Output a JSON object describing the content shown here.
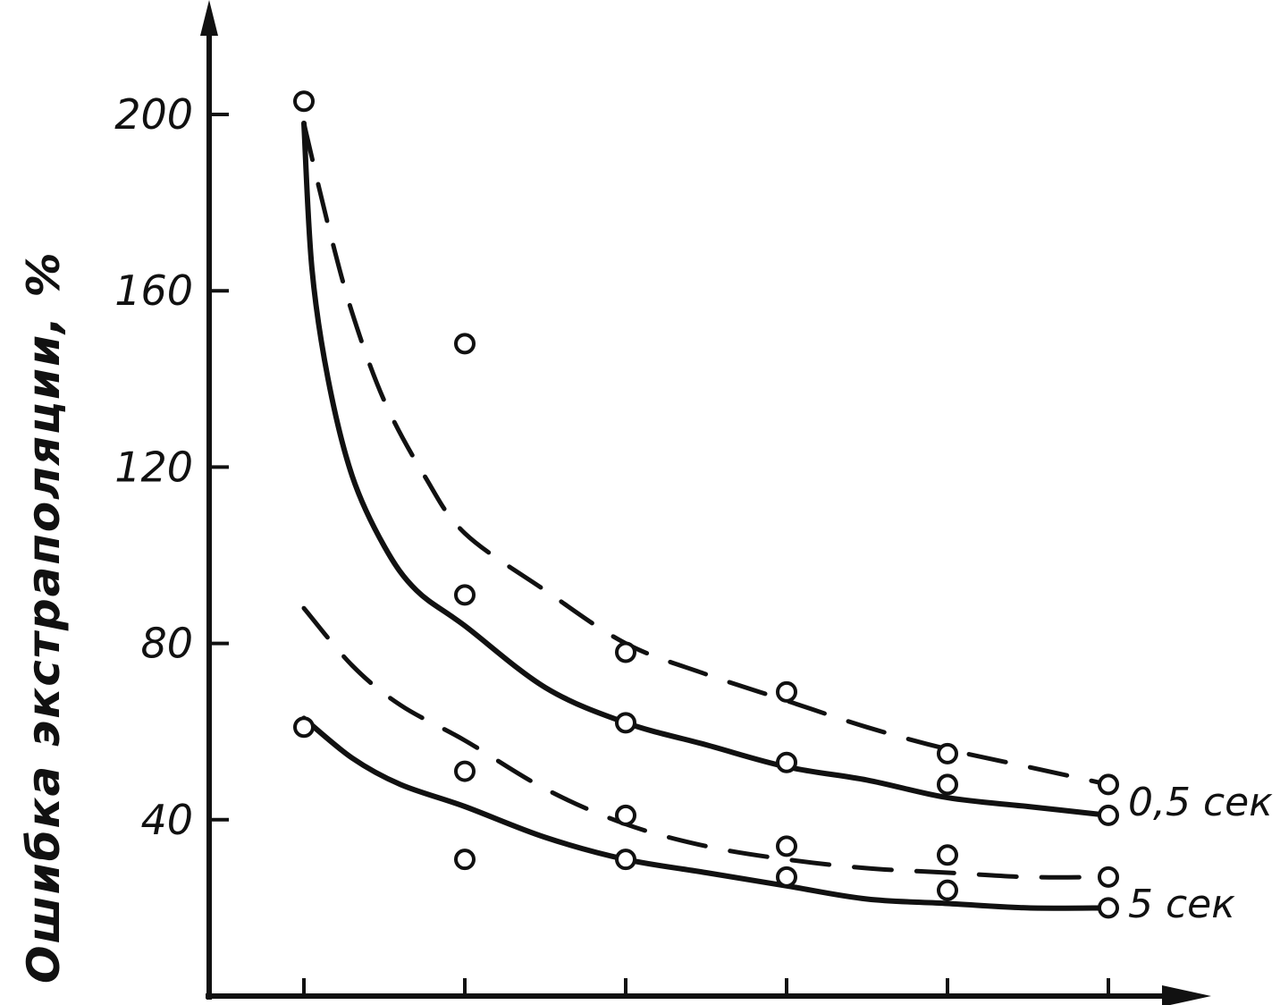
{
  "chart_data": {
    "type": "line",
    "title": "",
    "xlabel": "",
    "ylabel": "Ошибка экстраполяции, %",
    "x_ticks": [
      "",
      "",
      "",
      "",
      "",
      ""
    ],
    "x": [
      1,
      2,
      3,
      4,
      5,
      6
    ],
    "y_ticks": [
      40,
      80,
      120,
      160,
      200
    ],
    "ylim": [
      0,
      220
    ],
    "grid": false,
    "legend": "right (labels at curve ends)",
    "series_labels": [
      "0,5 сек",
      "5 сек"
    ],
    "series": [
      {
        "group": "0,5 сек",
        "style": "solid",
        "curve": [
          [
            1,
            198
          ],
          [
            1.05,
            165
          ],
          [
            1.15,
            140
          ],
          [
            1.3,
            118
          ],
          [
            1.5,
            102
          ],
          [
            1.7,
            92
          ],
          [
            2,
            84
          ],
          [
            2.5,
            70
          ],
          [
            3,
            62
          ],
          [
            3.5,
            57
          ],
          [
            4,
            52
          ],
          [
            4.5,
            49
          ],
          [
            5,
            45
          ],
          [
            5.5,
            43
          ],
          [
            6,
            41
          ]
        ],
        "points": [
          [
            1,
            203
          ],
          [
            2,
            91
          ],
          [
            3,
            62
          ],
          [
            4,
            53
          ],
          [
            5,
            48
          ],
          [
            6,
            41
          ]
        ]
      },
      {
        "group": "0,5 сек",
        "style": "dashed",
        "curve": [
          [
            1,
            198
          ],
          [
            1.15,
            175
          ],
          [
            1.3,
            155
          ],
          [
            1.5,
            135
          ],
          [
            1.75,
            118
          ],
          [
            2,
            105
          ],
          [
            2.5,
            92
          ],
          [
            3,
            80
          ],
          [
            3.5,
            73
          ],
          [
            4,
            67
          ],
          [
            4.5,
            61
          ],
          [
            5,
            56
          ],
          [
            5.5,
            52
          ],
          [
            6,
            48
          ]
        ],
        "points": [
          [
            2,
            148
          ],
          [
            3,
            78
          ],
          [
            4,
            69
          ],
          [
            5,
            55
          ],
          [
            6,
            48
          ]
        ]
      },
      {
        "group": "5 сек",
        "style": "solid",
        "curve": [
          [
            1,
            63
          ],
          [
            1.3,
            54
          ],
          [
            1.6,
            48
          ],
          [
            2,
            43
          ],
          [
            2.5,
            36
          ],
          [
            3,
            31
          ],
          [
            3.5,
            28
          ],
          [
            4,
            25
          ],
          [
            4.5,
            22
          ],
          [
            5,
            21
          ],
          [
            5.5,
            20
          ],
          [
            6,
            20
          ]
        ],
        "points": [
          [
            1,
            61
          ],
          [
            2,
            31
          ],
          [
            3,
            31
          ],
          [
            4,
            27
          ],
          [
            5,
            24
          ],
          [
            6,
            20
          ]
        ]
      },
      {
        "group": "5 сек",
        "style": "dashed",
        "curve": [
          [
            1,
            88
          ],
          [
            1.3,
            75
          ],
          [
            1.6,
            66
          ],
          [
            2,
            58
          ],
          [
            2.5,
            47
          ],
          [
            3,
            39
          ],
          [
            3.5,
            34
          ],
          [
            4,
            31
          ],
          [
            4.5,
            29
          ],
          [
            5,
            28
          ],
          [
            5.5,
            27
          ],
          [
            6,
            27
          ]
        ],
        "points": [
          [
            2,
            51
          ],
          [
            3,
            41
          ],
          [
            4,
            34
          ],
          [
            5,
            32
          ],
          [
            6,
            27
          ]
        ]
      }
    ]
  }
}
